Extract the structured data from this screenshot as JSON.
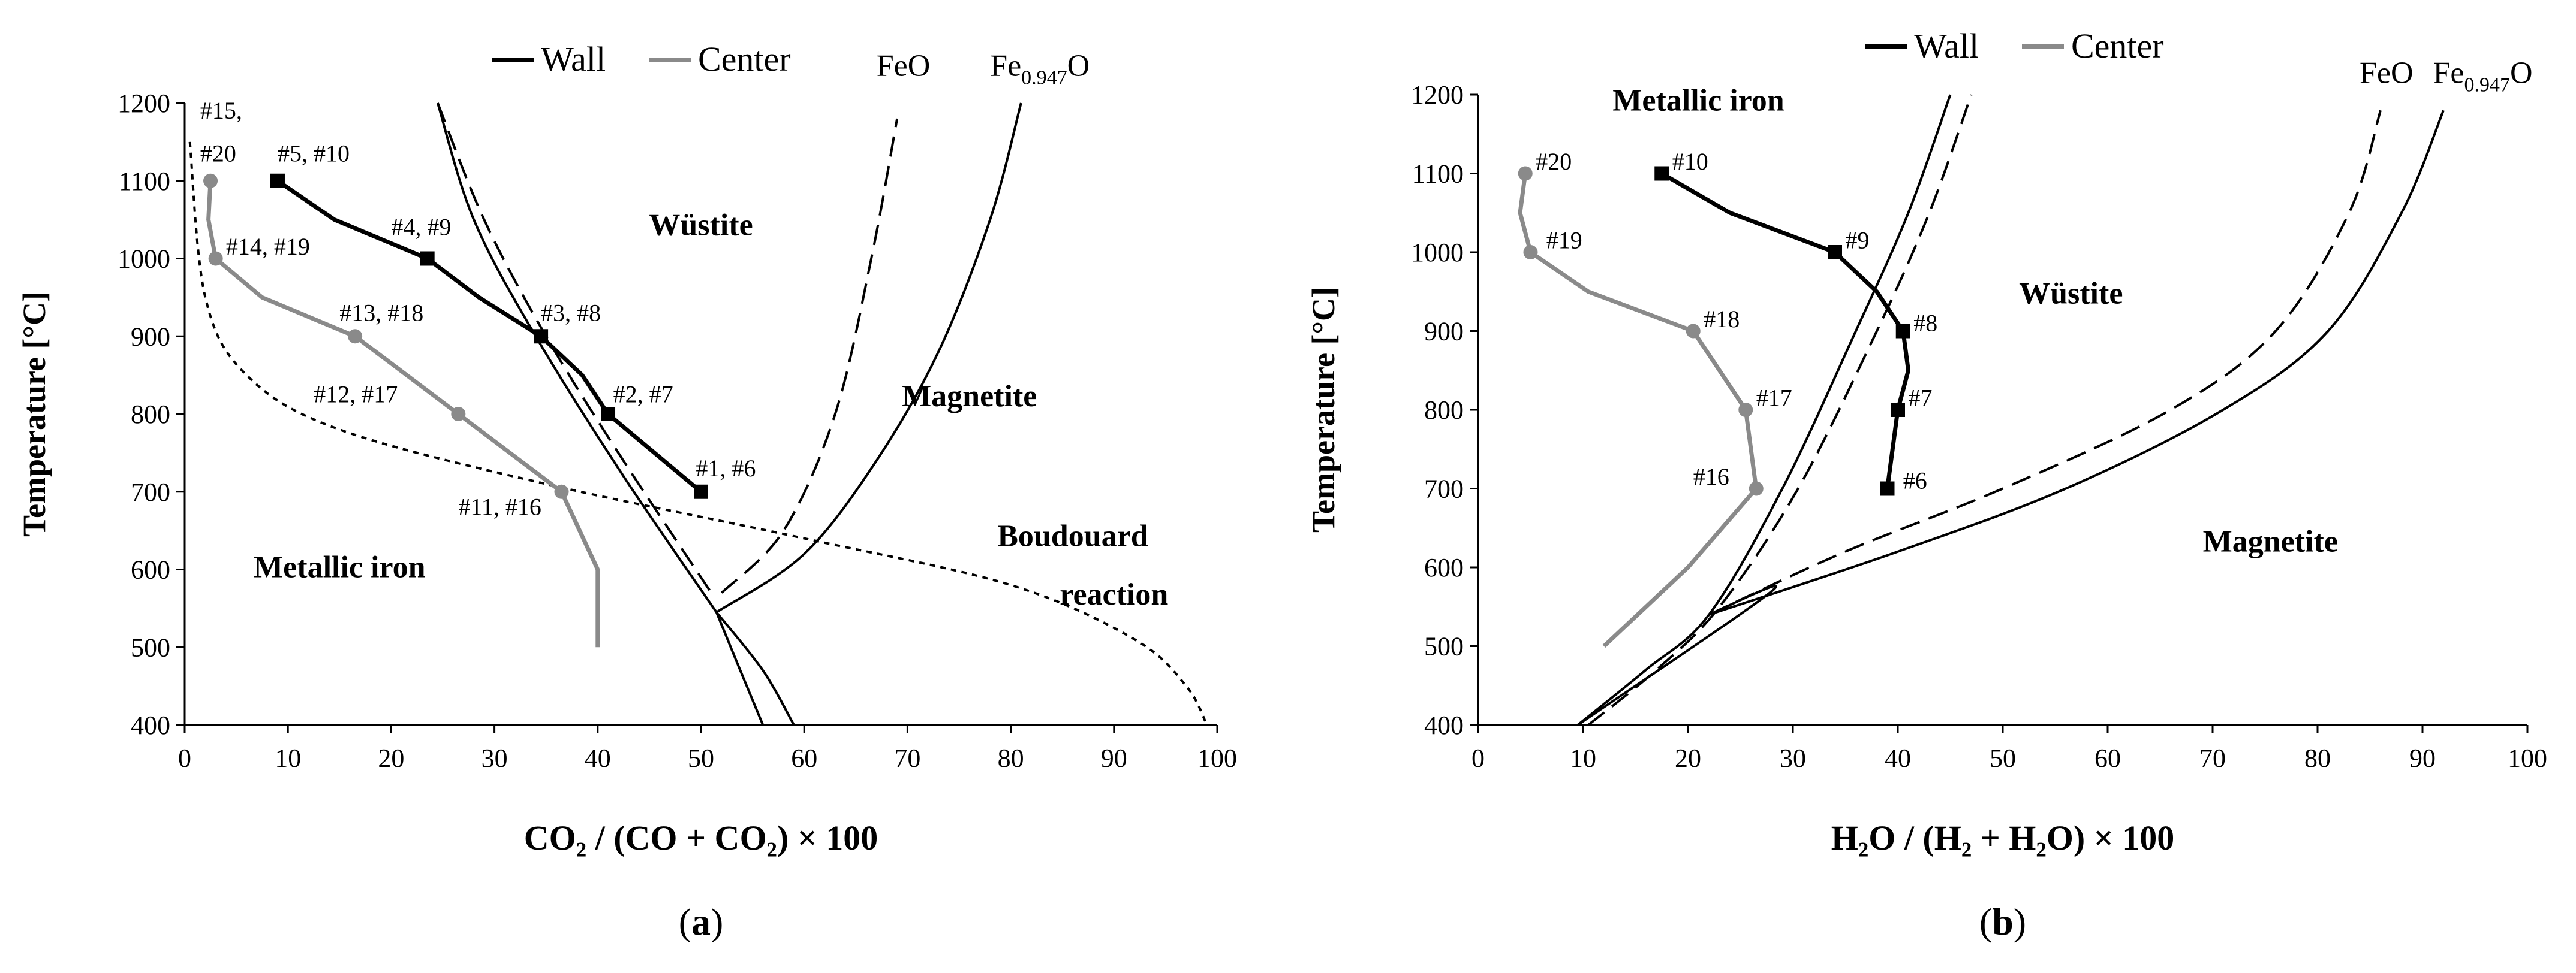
{
  "chart_data": [
    {
      "type": "line",
      "panel_label": "(a)",
      "xlabel": "CO₂ / (CO + CO₂) × 100",
      "ylabel": "Temperature [°C]",
      "xlim": [
        0,
        100
      ],
      "ylim": [
        400,
        1200
      ],
      "x_ticks": [
        0,
        10,
        20,
        30,
        40,
        50,
        60,
        70,
        80,
        90,
        100
      ],
      "y_ticks": [
        400,
        500,
        600,
        700,
        800,
        900,
        1000,
        1100,
        1200
      ],
      "grid": false,
      "legend": {
        "position": "top-center",
        "entries": [
          {
            "name": "Wall",
            "color": "#000000"
          },
          {
            "name": "Center",
            "color": "#8a8a8a"
          }
        ]
      },
      "series": [
        {
          "name": "Wall",
          "color": "#000000",
          "marker": "square",
          "points": [
            [
              50,
              700
            ],
            [
              41,
              800
            ],
            [
              38.5,
              850
            ],
            [
              34.5,
              900
            ],
            [
              28.5,
              950
            ],
            [
              23.5,
              1000
            ],
            [
              14.5,
              1050
            ],
            [
              9,
              1100
            ]
          ],
          "marker_idx": [
            0,
            1,
            3,
            5,
            7
          ]
        },
        {
          "name": "Center",
          "color": "#8a8a8a",
          "marker": "circle",
          "points": [
            [
              40,
              500
            ],
            [
              40,
              600
            ],
            [
              36.5,
              700
            ],
            [
              26.5,
              800
            ],
            [
              16.5,
              900
            ],
            [
              7.5,
              950
            ],
            [
              3,
              1000
            ],
            [
              2.3,
              1050
            ],
            [
              2.5,
              1100
            ]
          ],
          "marker_idx": [
            2,
            3,
            4,
            6,
            8
          ]
        }
      ],
      "reference_curves": [
        {
          "name": "Fe/FeO boundary (FeO)",
          "style": "dashed",
          "points": [
            [
              24.5,
              1200
            ],
            [
              29,
              1050
            ],
            [
              35,
              900
            ],
            [
              42,
              750
            ],
            [
              51,
              570
            ]
          ]
        },
        {
          "name": "FeO/Fe3O4 boundary (FeO)",
          "style": "dashed",
          "points": [
            [
              52,
              570
            ],
            [
              58,
              650
            ],
            [
              63,
              800
            ],
            [
              66.5,
              1000
            ],
            [
              69,
              1180
            ]
          ]
        },
        {
          "name": "Fe/FeO boundary (Fe0.947O)",
          "style": "solid",
          "points": [
            [
              24.5,
              1200
            ],
            [
              28,
              1050
            ],
            [
              34,
              900
            ],
            [
              42.5,
              720
            ],
            [
              51.5,
              545
            ]
          ]
        },
        {
          "name": "FeO/Fe3O4 boundary (Fe0.947O)",
          "style": "solid",
          "points": [
            [
              51.5,
              545
            ],
            [
              60,
              620
            ],
            [
              67,
              740
            ],
            [
              73,
              880
            ],
            [
              78,
              1050
            ],
            [
              81,
              1200
            ]
          ]
        },
        {
          "name": "Fe/Fe3O4 boundary",
          "style": "solid",
          "points": [
            [
              51.5,
              545
            ],
            [
              53.5,
              480
            ],
            [
              56,
              400
            ]
          ]
        },
        {
          "name": "extension",
          "style": "solid",
          "points": [
            [
              51.5,
              545
            ],
            [
              56,
              470
            ],
            [
              59,
              400
            ]
          ]
        },
        {
          "name": "Boudouard reaction",
          "style": "dotted",
          "points": [
            [
              0.5,
              1150
            ],
            [
              2,
              950
            ],
            [
              6,
              850
            ],
            [
              15,
              780
            ],
            [
              35,
              710
            ],
            [
              60,
              640
            ],
            [
              80,
              580
            ],
            [
              92,
              510
            ],
            [
              97,
              450
            ],
            [
              99,
              400
            ]
          ]
        }
      ],
      "region_labels": [
        {
          "text": "Wüstite",
          "x": 50,
          "y": 1030
        },
        {
          "text": "Magnetite",
          "x": 76,
          "y": 810
        },
        {
          "text": "Metallic iron",
          "x": 15,
          "y": 590
        },
        {
          "text": "Boudouard",
          "x": 86,
          "y": 630
        },
        {
          "text": "reaction",
          "x": 90,
          "y": 555
        }
      ],
      "curve_labels": [
        {
          "text": "FeO",
          "x": 67,
          "y": 1235
        },
        {
          "text_main": "Fe",
          "text_sub": "0.947",
          "text_end": "O",
          "x": 78,
          "y": 1235
        }
      ],
      "point_labels": [
        {
          "text": "#15,",
          "x": 1.5,
          "y": 1180
        },
        {
          "text": "#20",
          "x": 1.5,
          "y": 1125
        },
        {
          "text": "#5, #10",
          "x": 9,
          "y": 1125
        },
        {
          "text": "#14, #19",
          "x": 4,
          "y": 1005
        },
        {
          "text": "#4, #9",
          "x": 20,
          "y": 1030
        },
        {
          "text": "#13, #18",
          "x": 15,
          "y": 920
        },
        {
          "text": "#3, #8",
          "x": 34.5,
          "y": 920
        },
        {
          "text": "#12, #17",
          "x": 12.5,
          "y": 815
        },
        {
          "text": "#2, #7",
          "x": 41.5,
          "y": 815
        },
        {
          "text": "#1, #6",
          "x": 49.5,
          "y": 720
        },
        {
          "text": "#11, #16",
          "x": 26.5,
          "y": 670
        }
      ]
    },
    {
      "type": "line",
      "panel_label": "(b)",
      "xlabel": "H₂O / (H₂ + H₂O) × 100",
      "ylabel": "Temperature [°C]",
      "xlim": [
        0,
        100
      ],
      "ylim": [
        400,
        1200
      ],
      "x_ticks": [
        0,
        10,
        20,
        30,
        40,
        50,
        60,
        70,
        80,
        90,
        100
      ],
      "y_ticks": [
        400,
        500,
        600,
        700,
        800,
        900,
        1000,
        1100,
        1200
      ],
      "grid": false,
      "legend": {
        "position": "top-center",
        "entries": [
          {
            "name": "Wall",
            "color": "#000000"
          },
          {
            "name": "Center",
            "color": "#8a8a8a"
          }
        ]
      },
      "series": [
        {
          "name": "Wall",
          "color": "#000000",
          "marker": "square",
          "points": [
            [
              39,
              700
            ],
            [
              40,
              800
            ],
            [
              41,
              850
            ],
            [
              40.5,
              900
            ],
            [
              38,
              950
            ],
            [
              34,
              1000
            ],
            [
              24,
              1050
            ],
            [
              17.5,
              1100
            ]
          ],
          "marker_idx": [
            0,
            1,
            3,
            5,
            7
          ]
        },
        {
          "name": "Center",
          "color": "#8a8a8a",
          "marker": "circle",
          "points": [
            [
              12,
              500
            ],
            [
              20,
              600
            ],
            [
              26.5,
              700
            ],
            [
              25.5,
              800
            ],
            [
              20.5,
              900
            ],
            [
              10.5,
              950
            ],
            [
              5,
              1000
            ],
            [
              4,
              1050
            ],
            [
              4.5,
              1100
            ]
          ],
          "marker_idx": [
            2,
            3,
            4,
            6,
            8
          ]
        }
      ],
      "reference_curves": [
        {
          "name": "Fe/FeO boundary (Fe0.947O)",
          "style": "solid",
          "points": [
            [
              9.5,
              400
            ],
            [
              16,
              470
            ],
            [
              22,
              540
            ],
            [
              29,
              700
            ],
            [
              36,
              900
            ],
            [
              41,
              1050
            ],
            [
              45,
              1200
            ]
          ]
        },
        {
          "name": "Fe/FeO boundary (FeO)",
          "style": "dashed",
          "points": [
            [
              10.5,
              400
            ],
            [
              17,
              470
            ],
            [
              23,
              550
            ],
            [
              30.5,
              700
            ],
            [
              38,
              900
            ],
            [
              43,
              1050
            ],
            [
              47,
              1200
            ]
          ]
        },
        {
          "name": "FeO/Fe3O4 boundary (FeO)",
          "style": "dashed",
          "points": [
            [
              22,
              540
            ],
            [
              35,
              620
            ],
            [
              50,
              700
            ],
            [
              66,
              800
            ],
            [
              76,
              900
            ],
            [
              83,
              1050
            ],
            [
              86,
              1180
            ]
          ]
        },
        {
          "name": "FeO/Fe3O4 boundary (Fe0.947O)",
          "style": "solid",
          "points": [
            [
              22,
              540
            ],
            [
              40,
              620
            ],
            [
              56,
              700
            ],
            [
              71,
              800
            ],
            [
              81,
              900
            ],
            [
              88,
              1050
            ],
            [
              92,
              1180
            ]
          ]
        },
        {
          "name": "Fe/Fe3O4 boundary",
          "style": "solid",
          "points": [
            [
              22,
              540
            ],
            [
              28,
              570
            ],
            [
              9.5,
              400
            ]
          ]
        }
      ],
      "region_labels": [
        {
          "text": "Metallic iron",
          "x": 21,
          "y": 1180
        },
        {
          "text": "Wüstite",
          "x": 56.5,
          "y": 935
        },
        {
          "text": "Magnetite",
          "x": 75.5,
          "y": 620
        }
      ],
      "curve_labels": [
        {
          "text": "FeO",
          "x": 84,
          "y": 1215
        },
        {
          "text_main": "Fe",
          "text_sub": "0.947",
          "text_end": "O",
          "x": 91,
          "y": 1215
        }
      ],
      "point_labels": [
        {
          "text": "#20",
          "x": 5.5,
          "y": 1105
        },
        {
          "text": "#10",
          "x": 18.5,
          "y": 1105
        },
        {
          "text": "#19",
          "x": 6.5,
          "y": 1005
        },
        {
          "text": "#9",
          "x": 35,
          "y": 1005
        },
        {
          "text": "#18",
          "x": 21.5,
          "y": 905
        },
        {
          "text": "#8",
          "x": 41.5,
          "y": 900
        },
        {
          "text": "#17",
          "x": 26.5,
          "y": 805
        },
        {
          "text": "#7",
          "x": 41,
          "y": 805
        },
        {
          "text": "#16",
          "x": 20.5,
          "y": 705
        },
        {
          "text": "#6",
          "x": 40.5,
          "y": 700
        }
      ]
    }
  ]
}
